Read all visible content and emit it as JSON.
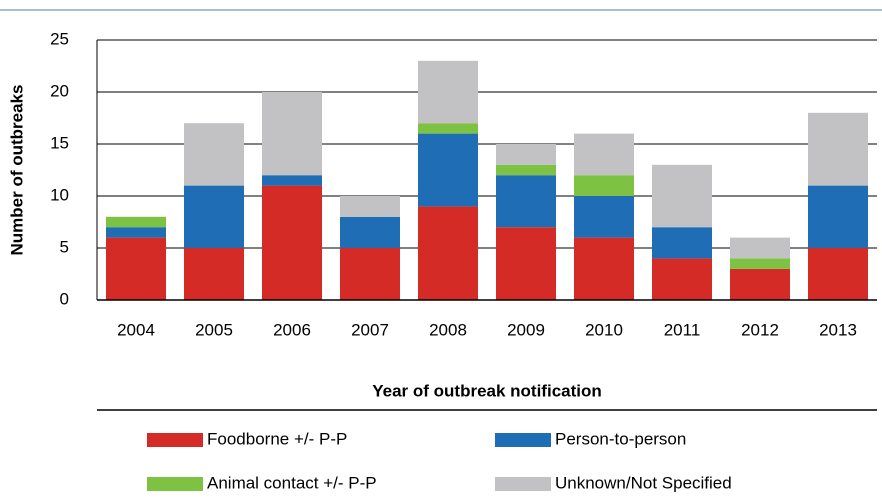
{
  "chart_data": {
    "type": "stacked-bar",
    "y_label": "Number of outbreaks",
    "x_label": "Year of outbreak notification",
    "categories": [
      "2004",
      "2005",
      "2006",
      "2007",
      "2008",
      "2009",
      "2010",
      "2011",
      "2012",
      "2013"
    ],
    "series": [
      {
        "name": "Foodborne +/- P-P",
        "color": "#d52b27",
        "values": [
          6,
          5,
          11,
          5,
          9,
          7,
          6,
          4,
          3,
          5
        ]
      },
      {
        "name": "Person-to-person",
        "color": "#1f6db5",
        "values": [
          1,
          6,
          1,
          3,
          7,
          5,
          4,
          3,
          0,
          6
        ]
      },
      {
        "name": "Animal contact +/- P-P",
        "color": "#7dc242",
        "values": [
          1,
          0,
          0,
          0,
          1,
          1,
          2,
          0,
          1,
          0
        ]
      },
      {
        "name": "Unknown/Not Specified",
        "color": "#c2c2c4",
        "values": [
          0,
          6,
          8,
          2,
          6,
          2,
          4,
          6,
          2,
          7
        ]
      }
    ],
    "ylim": [
      0,
      25
    ],
    "yticks": [
      0,
      5,
      10,
      15,
      20,
      25
    ],
    "grid": true
  }
}
